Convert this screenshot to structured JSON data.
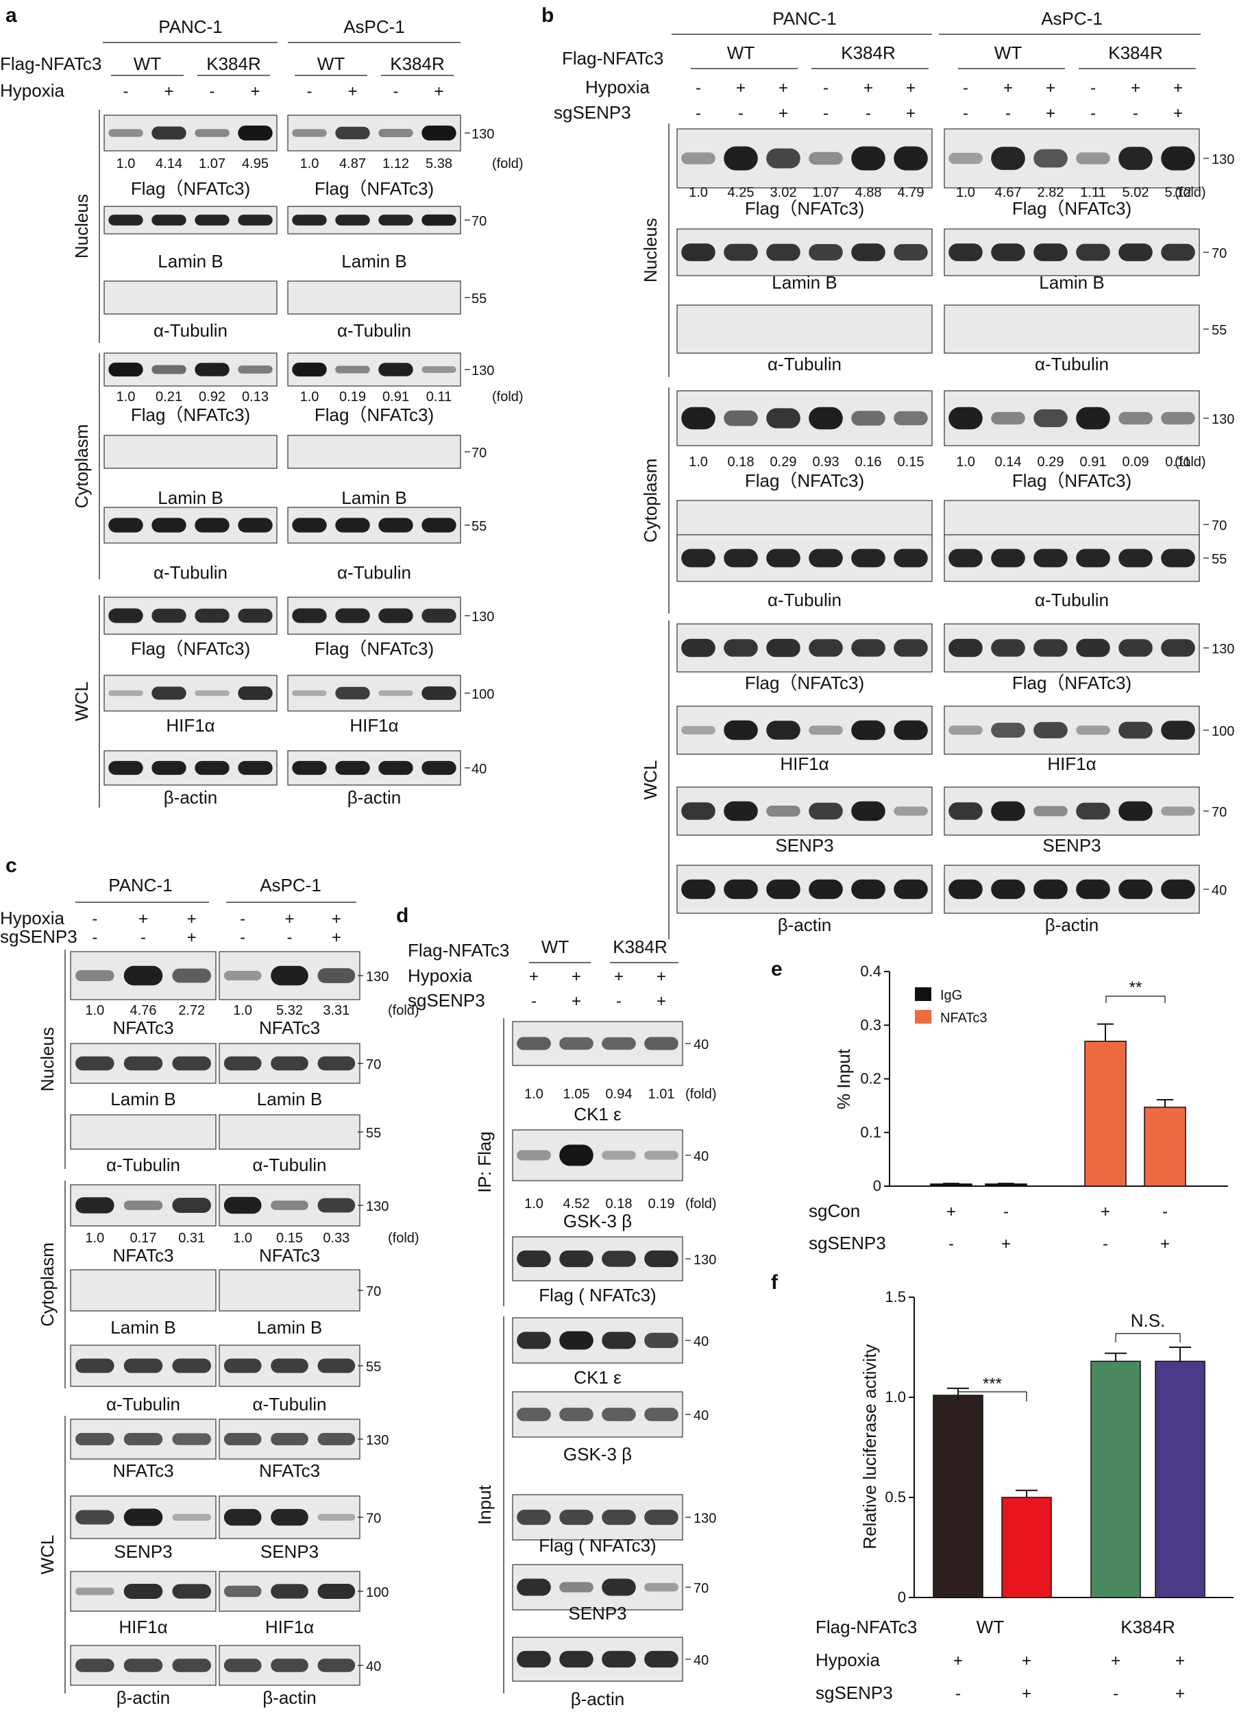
{
  "figure": {
    "panel_a": {
      "label": "a",
      "cell_lines": [
        "PANC-1",
        "AsPC-1"
      ],
      "row_labels": {
        "construct": "Flag-NFATc3",
        "hypoxia": "Hypoxia"
      },
      "construct_groups": [
        "WT",
        "K384R"
      ],
      "hypoxia_signs": [
        "-",
        "+",
        "-",
        "+"
      ],
      "fractions": [
        "Nucleus",
        "Cytoplasm",
        "WCL"
      ],
      "fold_unit": "(fold)",
      "blots": [
        {
          "left": "Flag（NFATc3)",
          "right": "Flag（NFATc3)",
          "mw": "130",
          "left_fold": [
            "1.0",
            "4.14",
            "1.07",
            "4.95"
          ],
          "right_fold": [
            "1.0",
            "4.87",
            "1.12",
            "5.38"
          ],
          "bands_left": [
            0.25,
            0.8,
            0.28,
            1.0
          ],
          "bands_right": [
            0.25,
            0.75,
            0.3,
            1.0
          ]
        },
        {
          "left": "Lamin B",
          "right": "Lamin B",
          "mw": "70",
          "bands_left": [
            0.9,
            0.9,
            0.9,
            0.9
          ],
          "bands_right": [
            0.9,
            0.9,
            0.9,
            0.95
          ]
        },
        {
          "left": "α-Tubulin",
          "right": "α-Tubulin",
          "mw": "55",
          "bands_left": [
            0,
            0,
            0,
            0
          ],
          "bands_right": [
            0,
            0,
            0,
            0
          ]
        },
        {
          "left": "Flag（NFATc3)",
          "right": "Flag（NFATc3)",
          "mw": "130",
          "left_fold": [
            "1.0",
            "0.21",
            "0.92",
            "0.13"
          ],
          "right_fold": [
            "1.0",
            "0.19",
            "0.91",
            "0.11"
          ],
          "bands_left": [
            1.0,
            0.45,
            0.95,
            0.35
          ],
          "bands_right": [
            1.0,
            0.3,
            0.95,
            0.2
          ]
        },
        {
          "left": "Lamin B",
          "right": "Lamin B",
          "mw": "70",
          "bands_left": [
            0,
            0,
            0,
            0
          ],
          "bands_right": [
            0,
            0,
            0,
            0
          ]
        },
        {
          "left": "α-Tubulin",
          "right": "α-Tubulin",
          "mw": "55",
          "bands_left": [
            0.95,
            0.95,
            0.95,
            0.95
          ],
          "bands_right": [
            0.95,
            0.95,
            0.95,
            0.95
          ]
        },
        {
          "left": "Flag（NFATc3)",
          "right": "Flag（NFATc3)",
          "mw": "130",
          "bands_left": [
            0.9,
            0.85,
            0.85,
            0.85
          ],
          "bands_right": [
            0.9,
            0.9,
            0.9,
            0.85
          ]
        },
        {
          "left": "HIF1α",
          "right": "HIF1α",
          "mw": "100",
          "bands_left": [
            0.05,
            0.8,
            0.05,
            0.85
          ],
          "bands_right": [
            0.05,
            0.75,
            0.05,
            0.85
          ]
        },
        {
          "left": "β-actin",
          "right": "β-actin",
          "mw": "40",
          "bands_left": [
            0.95,
            0.95,
            0.95,
            0.95
          ],
          "bands_right": [
            0.95,
            0.95,
            0.95,
            0.95
          ]
        }
      ]
    },
    "panel_b": {
      "label": "b",
      "cell_lines": [
        "PANC-1",
        "AsPC-1"
      ],
      "row_labels": {
        "construct": "Flag-NFATc3",
        "hypoxia": "Hypoxia",
        "sg": "sgSENP3"
      },
      "construct_groups": [
        "WT",
        "K384R"
      ],
      "hypoxia_signs": [
        "-",
        "+",
        "+",
        "-",
        "+",
        "+"
      ],
      "sg_signs": [
        "-",
        "-",
        "+",
        "-",
        "-",
        "+"
      ],
      "fractions": [
        "Nucleus",
        "Cytoplasm",
        "WCL"
      ],
      "fold_unit": "(fold)",
      "blots": [
        {
          "left": "Flag（NFATc3)",
          "right": "Flag（NFATc3)",
          "mw": "130",
          "left_fold": [
            "1.0",
            "4.25",
            "3.02",
            "1.07",
            "4.88",
            "4.79"
          ],
          "right_fold": [
            "1.0",
            "4.67",
            "2.82",
            "1.11",
            "5.02",
            "5.12"
          ],
          "bands_left": [
            0.2,
            0.95,
            0.7,
            0.25,
            0.95,
            0.95
          ],
          "bands_right": [
            0.15,
            0.9,
            0.6,
            0.2,
            0.9,
            0.95
          ]
        },
        {
          "left": "Lamin B",
          "right": "Lamin B",
          "mw": "70",
          "bands_left": [
            0.85,
            0.8,
            0.8,
            0.75,
            0.85,
            0.75
          ],
          "bands_right": [
            0.85,
            0.85,
            0.85,
            0.8,
            0.85,
            0.8
          ]
        },
        {
          "left": "α-Tubulin",
          "right": "α-Tubulin",
          "mw": "55",
          "bands_left": [
            0,
            0,
            0,
            0,
            0,
            0
          ],
          "bands_right": [
            0,
            0,
            0,
            0,
            0,
            0
          ]
        },
        {
          "left": "Flag（NFATc3)",
          "right": "Flag（NFATc3)",
          "mw": "130",
          "left_fold": [
            "1.0",
            "0.18",
            "0.29",
            "0.93",
            "0.16",
            "0.15"
          ],
          "right_fold": [
            "1.0",
            "0.14",
            "0.29",
            "0.91",
            "0.09",
            "0.11"
          ],
          "bands_left": [
            0.95,
            0.5,
            0.8,
            0.95,
            0.45,
            0.4
          ],
          "bands_right": [
            0.95,
            0.3,
            0.65,
            0.95,
            0.3,
            0.3
          ]
        },
        {
          "left": "Lamin B",
          "right": "Lamin B",
          "mw": "70",
          "bands_left": [
            0,
            0,
            0,
            0,
            0,
            0
          ],
          "bands_right": [
            0,
            0,
            0,
            0,
            0,
            0
          ]
        },
        {
          "left": "α-Tubulin",
          "right": "α-Tubulin",
          "mw": "55",
          "bands_left": [
            0.9,
            0.9,
            0.9,
            0.9,
            0.9,
            0.9
          ],
          "bands_right": [
            0.9,
            0.9,
            0.9,
            0.9,
            0.9,
            0.9
          ]
        },
        {
          "left": "Flag（NFATc3)",
          "right": "Flag（NFATc3)",
          "mw": "130",
          "bands_left": [
            0.85,
            0.8,
            0.85,
            0.8,
            0.8,
            0.8
          ],
          "bands_right": [
            0.85,
            0.8,
            0.8,
            0.85,
            0.8,
            0.8
          ]
        },
        {
          "left": "HIF1α",
          "right": "HIF1α",
          "mw": "100",
          "bands_left": [
            0.1,
            0.95,
            0.9,
            0.15,
            0.95,
            0.95
          ],
          "bands_right": [
            0.15,
            0.6,
            0.7,
            0.15,
            0.75,
            0.9
          ]
        },
        {
          "left": "SENP3",
          "right": "SENP3",
          "mw": "70",
          "bands_left": [
            0.8,
            0.95,
            0.3,
            0.75,
            0.95,
            0.15
          ],
          "bands_right": [
            0.8,
            0.95,
            0.25,
            0.75,
            0.95,
            0.15
          ]
        },
        {
          "left": "β-actin",
          "right": "β-actin",
          "mw": "40",
          "bands_left": [
            0.95,
            0.95,
            0.95,
            0.95,
            0.95,
            0.95
          ],
          "bands_right": [
            0.95,
            0.95,
            0.95,
            0.95,
            0.95,
            0.95
          ]
        }
      ]
    },
    "panel_c": {
      "label": "c",
      "cell_lines": [
        "PANC-1",
        "AsPC-1"
      ],
      "row_labels": {
        "hypoxia": "Hypoxia",
        "sg": "sgSENP3"
      },
      "hypoxia_signs": [
        "-",
        "+",
        "+"
      ],
      "sg_signs": [
        "-",
        "-",
        "+"
      ],
      "fractions": [
        "Nucleus",
        "Cytoplasm",
        "WCL"
      ],
      "fold_unit": "(fold)",
      "blots": [
        {
          "left": "NFATc3",
          "right": "NFATc3",
          "mw": "130",
          "left_fold": [
            "1.0",
            "4.76",
            "2.72"
          ],
          "right_fold": [
            "1.0",
            "5.32",
            "3.31"
          ],
          "bands_left": [
            0.3,
            0.95,
            0.55
          ],
          "bands_right": [
            0.2,
            0.95,
            0.6
          ]
        },
        {
          "left": "Lamin B",
          "right": "Lamin B",
          "mw": "70",
          "bands_left": [
            0.75,
            0.75,
            0.75
          ],
          "bands_right": [
            0.75,
            0.75,
            0.75
          ]
        },
        {
          "left": "α-Tubulin",
          "right": "α-Tubulin",
          "mw": "55",
          "bands_left": [
            0,
            0,
            0
          ],
          "bands_right": [
            0,
            0,
            0
          ]
        },
        {
          "left": "NFATc3",
          "right": "NFATc3",
          "mw": "130",
          "left_fold": [
            "1.0",
            "0.17",
            "0.31"
          ],
          "right_fold": [
            "1.0",
            "0.15",
            "0.33"
          ],
          "bands_left": [
            0.9,
            0.3,
            0.8
          ],
          "bands_right": [
            0.95,
            0.3,
            0.75
          ]
        },
        {
          "left": "Lamin B",
          "right": "Lamin B",
          "mw": "70",
          "bands_left": [
            0,
            0,
            0
          ],
          "bands_right": [
            0,
            0,
            0
          ]
        },
        {
          "left": "α-Tubulin",
          "right": "α-Tubulin",
          "mw": "55",
          "bands_left": [
            0.75,
            0.75,
            0.75
          ],
          "bands_right": [
            0.75,
            0.75,
            0.75
          ]
        },
        {
          "left": "NFATc3",
          "right": "NFATc3",
          "mw": "130",
          "bands_left": [
            0.6,
            0.6,
            0.55
          ],
          "bands_right": [
            0.6,
            0.6,
            0.6
          ]
        },
        {
          "left": "SENP3",
          "right": "SENP3",
          "mw": "70",
          "bands_left": [
            0.7,
            0.95,
            0.05
          ],
          "bands_right": [
            0.9,
            0.9,
            0.05
          ]
        },
        {
          "left": "HIF1α",
          "right": "HIF1α",
          "mw": "100",
          "bands_left": [
            0.15,
            0.85,
            0.8
          ],
          "bands_right": [
            0.5,
            0.8,
            0.85
          ]
        },
        {
          "left": "β-actin",
          "right": "β-actin",
          "mw": "40",
          "bands_left": [
            0.7,
            0.7,
            0.7
          ],
          "bands_right": [
            0.7,
            0.7,
            0.7
          ]
        }
      ]
    },
    "panel_d": {
      "label": "d",
      "row_labels": {
        "construct": "Flag-NFATc3",
        "hypoxia": "Hypoxia",
        "sg": "sgSENP3"
      },
      "construct_groups": [
        "WT",
        "K384R"
      ],
      "hypoxia_signs": [
        "+",
        "+",
        "+",
        "+"
      ],
      "sg_signs": [
        "-",
        "+",
        "-",
        "+"
      ],
      "sections": [
        "IP: Flag",
        "Input"
      ],
      "fold_unit": "(fold)",
      "blots": [
        {
          "label": "CK1 ε",
          "mw": "40",
          "fold": [
            "1.0",
            "1.05",
            "0.94",
            "1.01"
          ],
          "bands": [
            0.55,
            0.5,
            0.5,
            0.55
          ]
        },
        {
          "label": "GSK-3 β",
          "mw": "40",
          "fold": [
            "1.0",
            "4.52",
            "0.18",
            "0.19"
          ],
          "bands": [
            0.2,
            1.0,
            0.1,
            0.1
          ]
        },
        {
          "label": "Flag ( NFATc3)",
          "mw": "130",
          "bands": [
            0.85,
            0.85,
            0.8,
            0.85
          ]
        },
        {
          "label": "CK1 ε",
          "mw": "40",
          "bands": [
            0.85,
            0.95,
            0.85,
            0.7
          ]
        },
        {
          "label": "GSK-3 β",
          "mw": "40",
          "bands": [
            0.55,
            0.55,
            0.55,
            0.55
          ]
        },
        {
          "label": "Flag ( NFATc3)",
          "mw": "130",
          "bands": [
            0.7,
            0.7,
            0.7,
            0.7
          ]
        },
        {
          "label": "SENP3",
          "mw": "70",
          "bands": [
            0.85,
            0.3,
            0.85,
            0.15
          ]
        },
        {
          "label": "β-actin",
          "mw": "40",
          "bands": [
            0.85,
            0.85,
            0.85,
            0.85
          ]
        }
      ]
    },
    "panel_e": {
      "label": "e",
      "ylabel": "% Input",
      "significance": "**",
      "row_labels": {
        "sgcon": "sgCon",
        "sg": "sgSENP3"
      },
      "sgcon_signs": [
        "+",
        "-",
        "+",
        "-"
      ],
      "sg_signs": [
        "-",
        "+",
        "-",
        "+"
      ]
    },
    "panel_f": {
      "label": "f",
      "ylabel": "Relative luciferase activity",
      "significance": [
        "***",
        "N.S."
      ],
      "row_labels": {
        "construct": "Flag-NFATc3",
        "hypoxia": "Hypoxia",
        "sg": "sgSENP3"
      },
      "construct_groups": [
        "WT",
        "K384R"
      ],
      "hypoxia_signs": [
        "+",
        "+",
        "+",
        "+"
      ],
      "sg_signs": [
        "-",
        "+",
        "-",
        "+"
      ]
    }
  },
  "chart_data": [
    {
      "type": "bar",
      "ylabel": "% Input",
      "ylim": [
        0,
        0.4
      ],
      "yticks": [
        "0",
        "0.1",
        "0.2",
        "0.3",
        "0.4"
      ],
      "legend_placement": "top-left",
      "series": [
        {
          "name": "IgG",
          "color": "#111111",
          "values": [
            0.004,
            0.004
          ],
          "errors": [
            0.001,
            0.001
          ]
        },
        {
          "name": "NFATc3",
          "color": "#ee6a40",
          "values": [
            0.27,
            0.147
          ],
          "errors": [
            0.032,
            0.014
          ]
        }
      ],
      "colors": {
        "IgG": "#111111",
        "NFATc3": "#ee6a40"
      }
    },
    {
      "type": "bar",
      "ylabel": "Relative luciferase activity",
      "ylim": [
        0,
        1.5
      ],
      "yticks": [
        "0",
        "0.5",
        "1.0",
        "1.5"
      ],
      "values": [
        1.01,
        0.5,
        1.18,
        1.18
      ],
      "errors": [
        0.035,
        0.035,
        0.04,
        0.07
      ],
      "colors": [
        "#2e1f1f",
        "#e8141e",
        "#4b8a61",
        "#4a3a87"
      ]
    }
  ]
}
